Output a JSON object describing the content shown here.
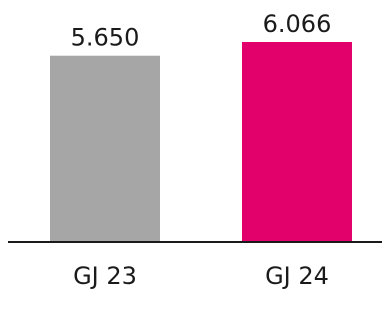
{
  "chart_data": {
    "type": "bar",
    "categories": [
      "GJ 23",
      "GJ 24"
    ],
    "values": [
      5650,
      6066
    ],
    "value_labels": [
      "5.650",
      "6.066"
    ],
    "ylim": [
      0,
      6066
    ],
    "grid": false,
    "legend": "none",
    "colors": [
      "#a6a6a6",
      "#e2006b"
    ],
    "axis_color": "#1a1a1a",
    "title": "",
    "xlabel": "",
    "ylabel": ""
  }
}
